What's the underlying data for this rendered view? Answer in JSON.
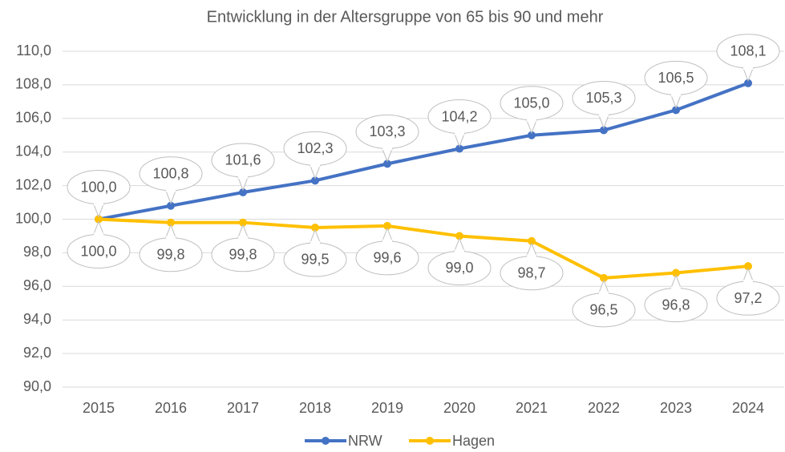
{
  "chart_data": {
    "type": "line",
    "title": "Entwicklung in der Altersgruppe von 65 bis 90 und mehr",
    "categories": [
      "2015",
      "2016",
      "2017",
      "2018",
      "2019",
      "2020",
      "2021",
      "2022",
      "2023",
      "2024"
    ],
    "series": [
      {
        "name": "NRW",
        "color": "#4472c4",
        "values": [
          100.0,
          100.8,
          101.6,
          102.3,
          103.3,
          104.2,
          105.0,
          105.3,
          106.5,
          108.1
        ],
        "value_labels": [
          "100,0",
          "100,8",
          "101,6",
          "102,3",
          "103,3",
          "104,2",
          "105,0",
          "105,3",
          "106,5",
          "108,1"
        ]
      },
      {
        "name": "Hagen",
        "color": "#ffc000",
        "values": [
          100.0,
          99.8,
          99.8,
          99.5,
          99.6,
          99.0,
          98.7,
          96.5,
          96.8,
          97.2
        ],
        "value_labels": [
          "100,0",
          "99,8",
          "99,8",
          "99,5",
          "99,6",
          "99,0",
          "98,7",
          "96,5",
          "96,8",
          "97,2"
        ]
      }
    ],
    "ylim": [
      90,
      110
    ],
    "yticks": [
      {
        "value": 90,
        "label": "90,0"
      },
      {
        "value": 92,
        "label": "92,0"
      },
      {
        "value": 94,
        "label": "94,0"
      },
      {
        "value": 96,
        "label": "96,0"
      },
      {
        "value": 98,
        "label": "98,0"
      },
      {
        "value": 100,
        "label": "100,0"
      },
      {
        "value": 102,
        "label": "102,0"
      },
      {
        "value": 104,
        "label": "104,0"
      },
      {
        "value": 106,
        "label": "106,0"
      },
      {
        "value": 108,
        "label": "108,0"
      },
      {
        "value": 110,
        "label": "110,0"
      }
    ],
    "grid": true,
    "legend": "bottom"
  }
}
